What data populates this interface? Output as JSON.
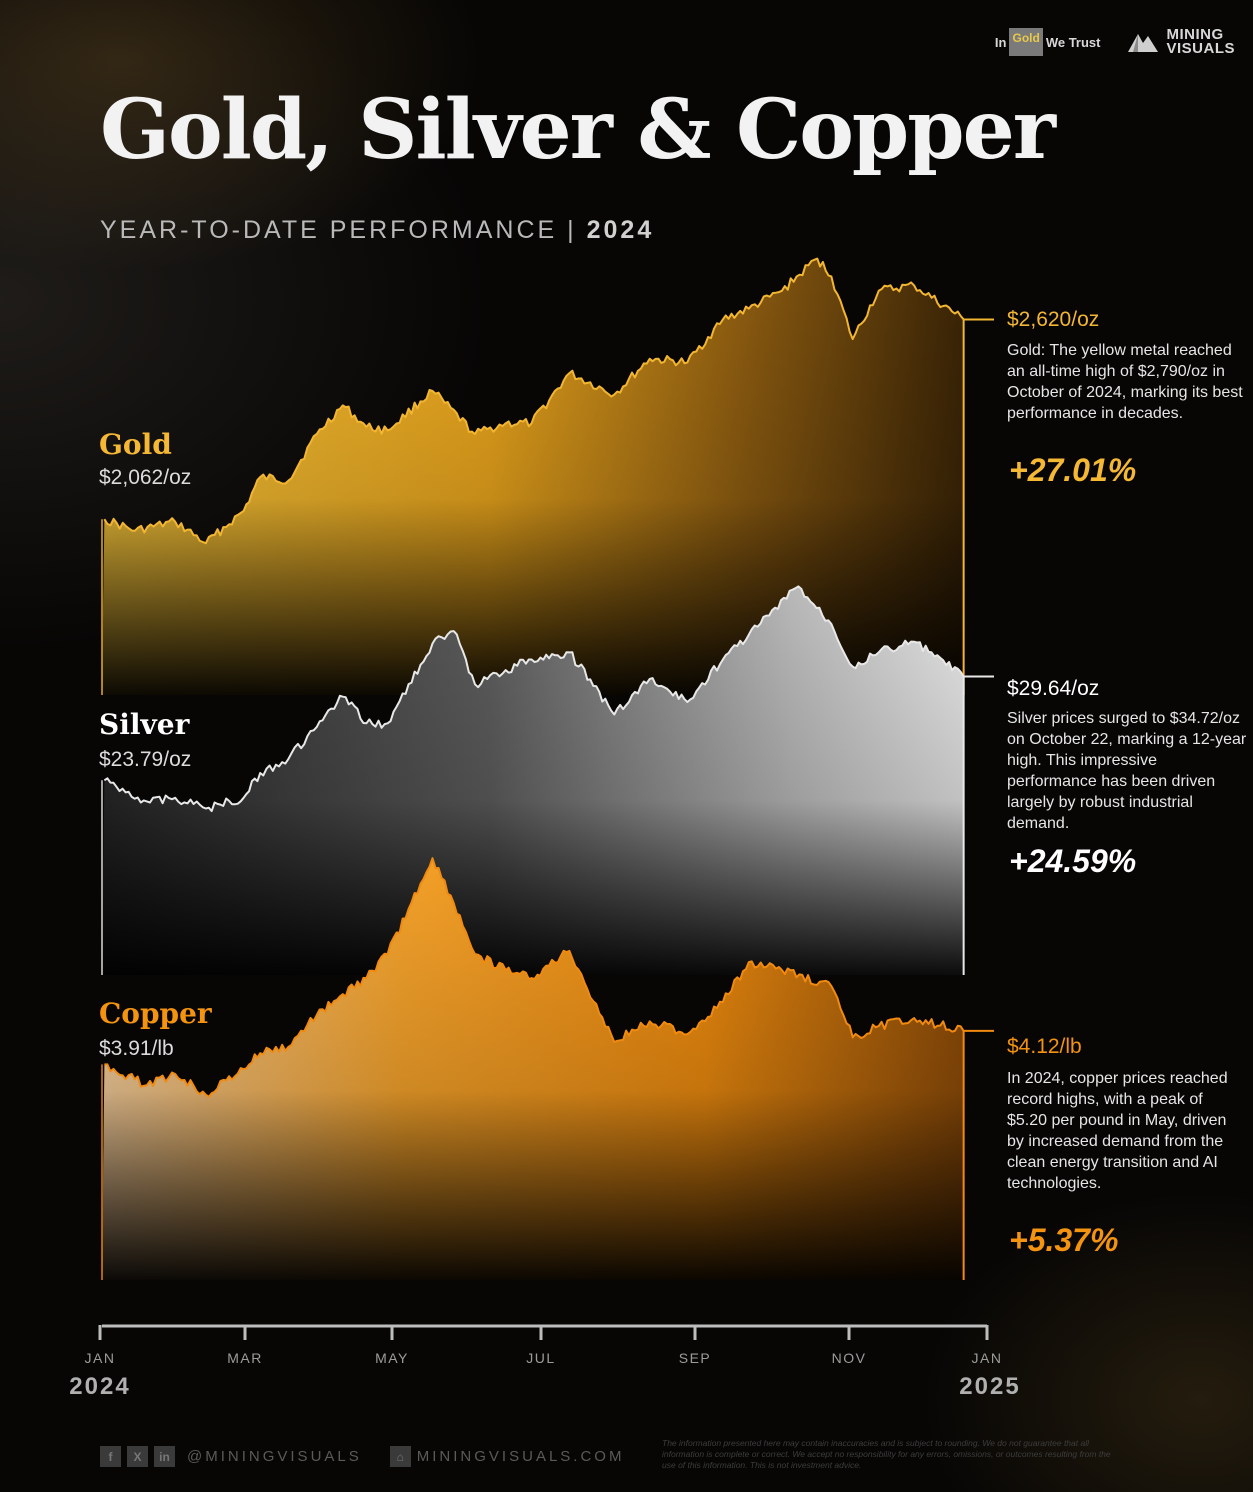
{
  "header": {
    "title": "Gold, Silver & Copper",
    "subtitle_main": "YEAR-TO-DATE PERFORMANCE | ",
    "subtitle_year": "2024"
  },
  "brands": {
    "igwt_in": "In",
    "igwt_gold": "Gold",
    "igwt_we_trust": "We Trust",
    "mining": "MINING",
    "visuals": "VISUALS"
  },
  "metals": {
    "gold": {
      "name": "Gold",
      "start_price": "$2,062/oz",
      "end_price": "$2,620/oz",
      "description": "Gold: The yellow metal reached an all-time high of $2,790/oz in October of 2024, marking its best performance in decades.",
      "change": "+27.01%"
    },
    "silver": {
      "name": "Silver",
      "start_price": "$23.79/oz",
      "end_price": "$29.64/oz",
      "description": "Silver prices surged to $34.72/oz on October 22, marking a 12-year high. This impressive performance has been driven largely by robust industrial demand.",
      "change": "+24.59%"
    },
    "copper": {
      "name": "Copper",
      "start_price": "$3.91/lb",
      "end_price": "$4.12/lb",
      "description": "In 2024, copper prices reached record highs, with a peak of $5.20 per pound in May, driven by increased demand from the clean energy transition and AI technologies.",
      "change": "+5.37%"
    }
  },
  "colors": {
    "gold": "#f2b632",
    "gold_label": "#f5b835",
    "silver": "#e8e8e8",
    "copper": "#f08a10",
    "copper_label": "#f3930f",
    "axis": "#bdbdbd"
  },
  "chart_data": {
    "type": "area",
    "x_axis": {
      "ticks": [
        "JAN",
        "MAR",
        "MAY",
        "JUL",
        "SEP",
        "NOV",
        "JAN"
      ],
      "start_year": "2024",
      "end_year": "2025",
      "range": [
        "2024-01-01",
        "2025-01-01"
      ]
    },
    "series": [
      {
        "name": "Gold",
        "unit": "$/oz",
        "x": [
          "2024-01-02",
          "2024-01-15",
          "2024-02-01",
          "2024-02-14",
          "2024-03-01",
          "2024-03-08",
          "2024-03-20",
          "2024-04-01",
          "2024-04-12",
          "2024-04-22",
          "2024-05-01",
          "2024-05-20",
          "2024-06-07",
          "2024-06-20",
          "2024-07-01",
          "2024-07-17",
          "2024-08-05",
          "2024-08-20",
          "2024-09-05",
          "2024-09-20",
          "2024-10-01",
          "2024-10-15",
          "2024-10-30",
          "2024-11-05",
          "2024-11-14",
          "2024-11-25",
          "2024-12-10",
          "2024-12-31"
        ],
        "y": [
          2062,
          2030,
          2055,
          1995,
          2085,
          2180,
          2170,
          2300,
          2380,
          2320,
          2310,
          2420,
          2300,
          2330,
          2330,
          2470,
          2410,
          2510,
          2500,
          2620,
          2650,
          2700,
          2790,
          2740,
          2565,
          2700,
          2715,
          2620
        ],
        "start_label": "$2,062/oz",
        "end_label": "$2,620/oz",
        "notable_high": 2790
      },
      {
        "name": "Silver",
        "unit": "$/oz",
        "x": [
          "2024-01-02",
          "2024-01-20",
          "2024-02-01",
          "2024-02-14",
          "2024-03-01",
          "2024-03-08",
          "2024-03-20",
          "2024-04-01",
          "2024-04-12",
          "2024-04-22",
          "2024-05-01",
          "2024-05-20",
          "2024-05-29",
          "2024-06-07",
          "2024-06-20",
          "2024-07-01",
          "2024-07-17",
          "2024-08-05",
          "2024-08-20",
          "2024-09-05",
          "2024-09-20",
          "2024-10-01",
          "2024-10-22",
          "2024-11-05",
          "2024-11-14",
          "2024-11-25",
          "2024-12-10",
          "2024-12-31"
        ],
        "y": [
          23.79,
          22.6,
          22.8,
          22.2,
          22.8,
          24.2,
          25.0,
          26.8,
          28.5,
          27.0,
          27.0,
          31.5,
          32.2,
          29.2,
          30.0,
          30.6,
          31.0,
          27.5,
          29.5,
          28.2,
          30.6,
          32.0,
          34.72,
          32.6,
          30.2,
          31.0,
          31.6,
          29.64
        ],
        "start_label": "$23.79/oz",
        "end_label": "$29.64/oz",
        "notable_high": 34.72
      },
      {
        "name": "Copper",
        "unit": "$/lb",
        "x": [
          "2024-01-02",
          "2024-01-20",
          "2024-02-01",
          "2024-02-14",
          "2024-03-01",
          "2024-03-08",
          "2024-03-20",
          "2024-04-01",
          "2024-04-12",
          "2024-04-22",
          "2024-05-01",
          "2024-05-20",
          "2024-05-29",
          "2024-06-07",
          "2024-06-20",
          "2024-07-01",
          "2024-07-17",
          "2024-08-05",
          "2024-08-20",
          "2024-09-05",
          "2024-09-20",
          "2024-10-01",
          "2024-10-15",
          "2024-11-05",
          "2024-11-14",
          "2024-11-25",
          "2024-12-10",
          "2024-12-31"
        ],
        "y": [
          3.91,
          3.78,
          3.85,
          3.72,
          3.88,
          3.98,
          4.02,
          4.22,
          4.35,
          4.45,
          4.6,
          5.2,
          4.92,
          4.6,
          4.5,
          4.45,
          4.62,
          4.05,
          4.18,
          4.1,
          4.3,
          4.55,
          4.5,
          4.4,
          4.08,
          4.15,
          4.2,
          4.12
        ],
        "start_label": "$3.91/lb",
        "end_label": "$4.12/lb",
        "notable_high": 5.2
      }
    ],
    "notes": [
      "+27.01%",
      "+24.59%",
      "+5.37%"
    ]
  },
  "footer": {
    "handle": "@MININGVISUALS",
    "site": "MININGVISUALS.COM",
    "disclaimer": "The information presented here may contain inaccuracies and is subject to rounding. We do not guarantee that all information is complete or correct. We accept no responsibility for any errors, omissions, or outcomes resulting from the use of this information. This is not investment advice."
  }
}
